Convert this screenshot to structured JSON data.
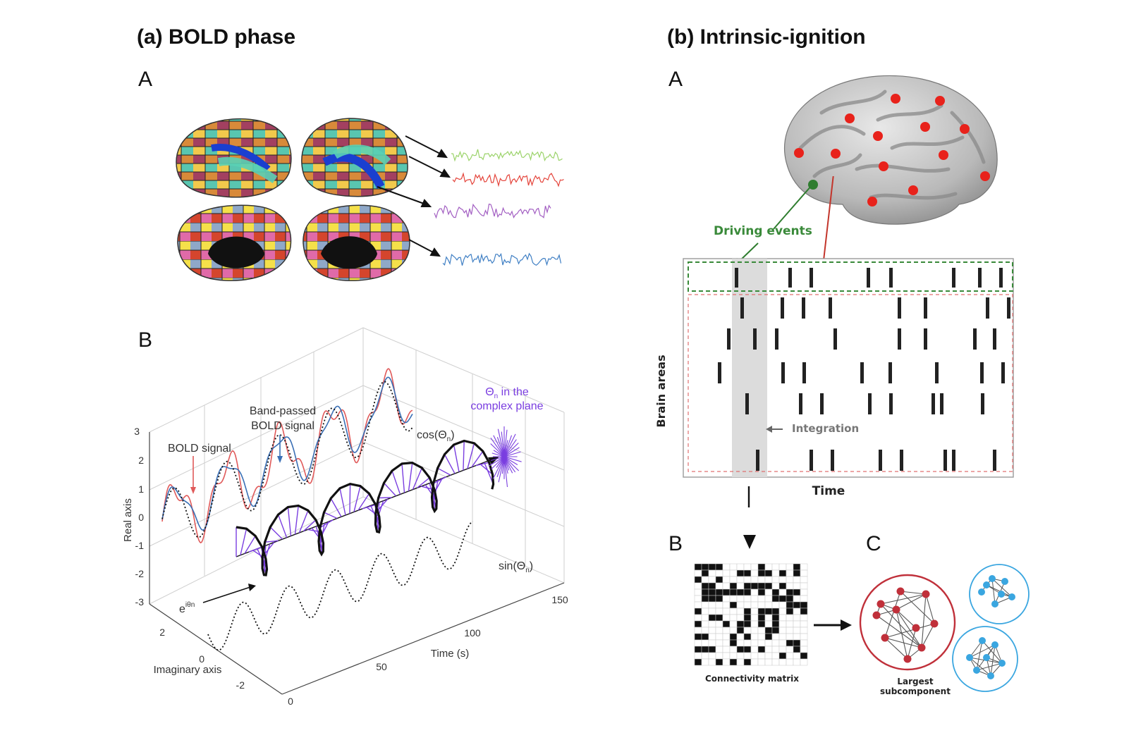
{
  "panel_a": {
    "title": "(a) BOLD phase",
    "sub_a": "A",
    "sub_b": "B",
    "plot": {
      "y_ticks": [
        "3",
        "2",
        "1",
        "0",
        "-1",
        "-2",
        "-3"
      ],
      "y_label": "Real axis",
      "imag_ticks": [
        "2",
        "0",
        "-2"
      ],
      "imag_label": "Imaginary axis",
      "time_ticks": [
        "0",
        "50",
        "100",
        "150"
      ],
      "time_label": "Time (s)",
      "ann_bold": "BOLD signal",
      "ann_band_1": "Band-passed",
      "ann_band_2": "BOLD signal",
      "ann_cos": "cos(Θ",
      "ann_cos_sub": "n",
      "ann_cos_end": ")",
      "ann_sin": "sin(Θ",
      "ann_sin_sub": "n",
      "ann_sin_end": ")",
      "ann_exp": "e",
      "ann_exp_sup": "iθn",
      "ann_theta_1a": "Θ",
      "ann_theta_1sub": "n",
      "ann_theta_1b": " in the",
      "ann_theta_2": "complex plane"
    }
  },
  "panel_b": {
    "title": "(b) Intrinsic-ignition",
    "sub_a": "A",
    "sub_b": "B",
    "sub_c": "C",
    "driving_events": "Driving events",
    "integration": "Integration",
    "brain_areas": "Brain areas",
    "time": "Time",
    "connectivity_matrix": "Connectivity matrix",
    "largest_1": "Largest",
    "largest_2": "subcomponent"
  },
  "colors": {
    "red_marker": "#e8221b",
    "green_marker": "#2f7d2f",
    "driving_green": "#3a8a3a",
    "purple": "#7a3ee0",
    "bold_red": "#e05a5a",
    "band_blue": "#3a6fb5",
    "node_red": "#c0303a",
    "node_blue": "#3aa6e0"
  }
}
